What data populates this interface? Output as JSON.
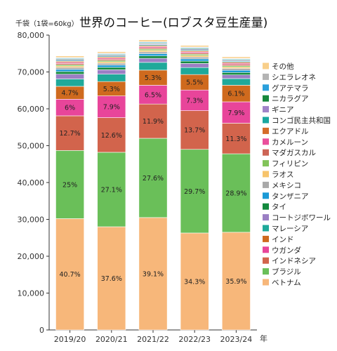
{
  "chart_data": {
    "type": "bar",
    "stacked": true,
    "title": "世界のコーヒー(ロブスタ豆生産量)",
    "unit_label": "千袋（1袋=60kg）",
    "xlabel": "年",
    "ylim": [
      0,
      80000
    ],
    "yticks": [
      "0",
      "10,000",
      "20,000",
      "30,000",
      "40,000",
      "50,000",
      "60,000",
      "70,000",
      "80,000"
    ],
    "grid": false,
    "legend_position": "right",
    "categories": [
      "2019/20",
      "2020/21",
      "2021/22",
      "2022/23",
      "2023/24"
    ],
    "series": [
      {
        "name": "ベトナム",
        "color": "#f7b77a",
        "values": [
          30200,
          28000,
          30500,
          26300,
          26500
        ],
        "labels": [
          "40.7%",
          "37.6%",
          "39.1%",
          "34.3%",
          "35.9%"
        ]
      },
      {
        "name": "ブラジル",
        "color": "#6abf59",
        "values": [
          18500,
          20200,
          21500,
          22700,
          21300
        ],
        "labels": [
          "25%",
          "27.1%",
          "27.6%",
          "29.7%",
          "28.9%"
        ]
      },
      {
        "name": "インドネシア",
        "color": "#d2644c",
        "values": [
          9400,
          9400,
          9300,
          10500,
          8300
        ],
        "labels": [
          "12.7%",
          "12.6%",
          "11.9%",
          "13.7%",
          "11.3%"
        ]
      },
      {
        "name": "ウガンダ",
        "color": "#e8459a",
        "values": [
          4500,
          5900,
          5100,
          5600,
          5800
        ],
        "labels": [
          "6%",
          "7.9%",
          "6.5%",
          "7.3%",
          "7.9%"
        ]
      },
      {
        "name": "インド",
        "color": "#cf6a1e",
        "values": [
          3500,
          3900,
          4100,
          4200,
          4500
        ],
        "labels": [
          "4.7%",
          "5.3%",
          "5.3%",
          "5.5%",
          "6.1%"
        ]
      },
      {
        "name": "マレーシア",
        "color": "#1fa99a",
        "values": [
          2000,
          2000,
          2100,
          1900,
          1800
        ]
      },
      {
        "name": "コートジボワール",
        "color": "#9b7fc4",
        "values": [
          1300,
          1200,
          1100,
          1100,
          1000
        ]
      },
      {
        "name": "タイ",
        "color": "#138a3e",
        "values": [
          700,
          650,
          650,
          650,
          650
        ]
      },
      {
        "name": "タンザニア",
        "color": "#1b9ad6",
        "values": [
          600,
          600,
          600,
          600,
          600
        ]
      },
      {
        "name": "メキシコ",
        "color": "#a9a9a9",
        "values": [
          500,
          500,
          500,
          500,
          500
        ]
      },
      {
        "name": "ラオス",
        "color": "#f7c46c",
        "values": [
          400,
          400,
          400,
          400,
          400
        ]
      },
      {
        "name": "フィリピン",
        "color": "#82c45a",
        "values": [
          350,
          350,
          350,
          350,
          350
        ]
      },
      {
        "name": "マダガスカル",
        "color": "#cd6556",
        "values": [
          350,
          350,
          350,
          350,
          350
        ]
      },
      {
        "name": "カメルーン",
        "color": "#ea4f9c",
        "values": [
          300,
          300,
          300,
          300,
          300
        ]
      },
      {
        "name": "エクアドル",
        "color": "#d56c2a",
        "values": [
          300,
          300,
          300,
          300,
          300
        ]
      },
      {
        "name": "コンゴ民主共和国",
        "color": "#1aa7a0",
        "values": [
          250,
          250,
          250,
          250,
          250
        ]
      },
      {
        "name": "ギニア",
        "color": "#a083c8",
        "values": [
          250,
          250,
          250,
          250,
          250
        ]
      },
      {
        "name": "ニカラグア",
        "color": "#17883c",
        "values": [
          200,
          200,
          200,
          200,
          200
        ]
      },
      {
        "name": "グアテマラ",
        "color": "#2ba0dc",
        "values": [
          200,
          200,
          200,
          200,
          200
        ]
      },
      {
        "name": "シエラレオネ",
        "color": "#b4b4b4",
        "values": [
          150,
          150,
          150,
          150,
          150
        ]
      },
      {
        "name": "その他",
        "color": "#f8cf8a",
        "values": [
          400,
          400,
          500,
          400,
          400
        ]
      }
    ]
  }
}
